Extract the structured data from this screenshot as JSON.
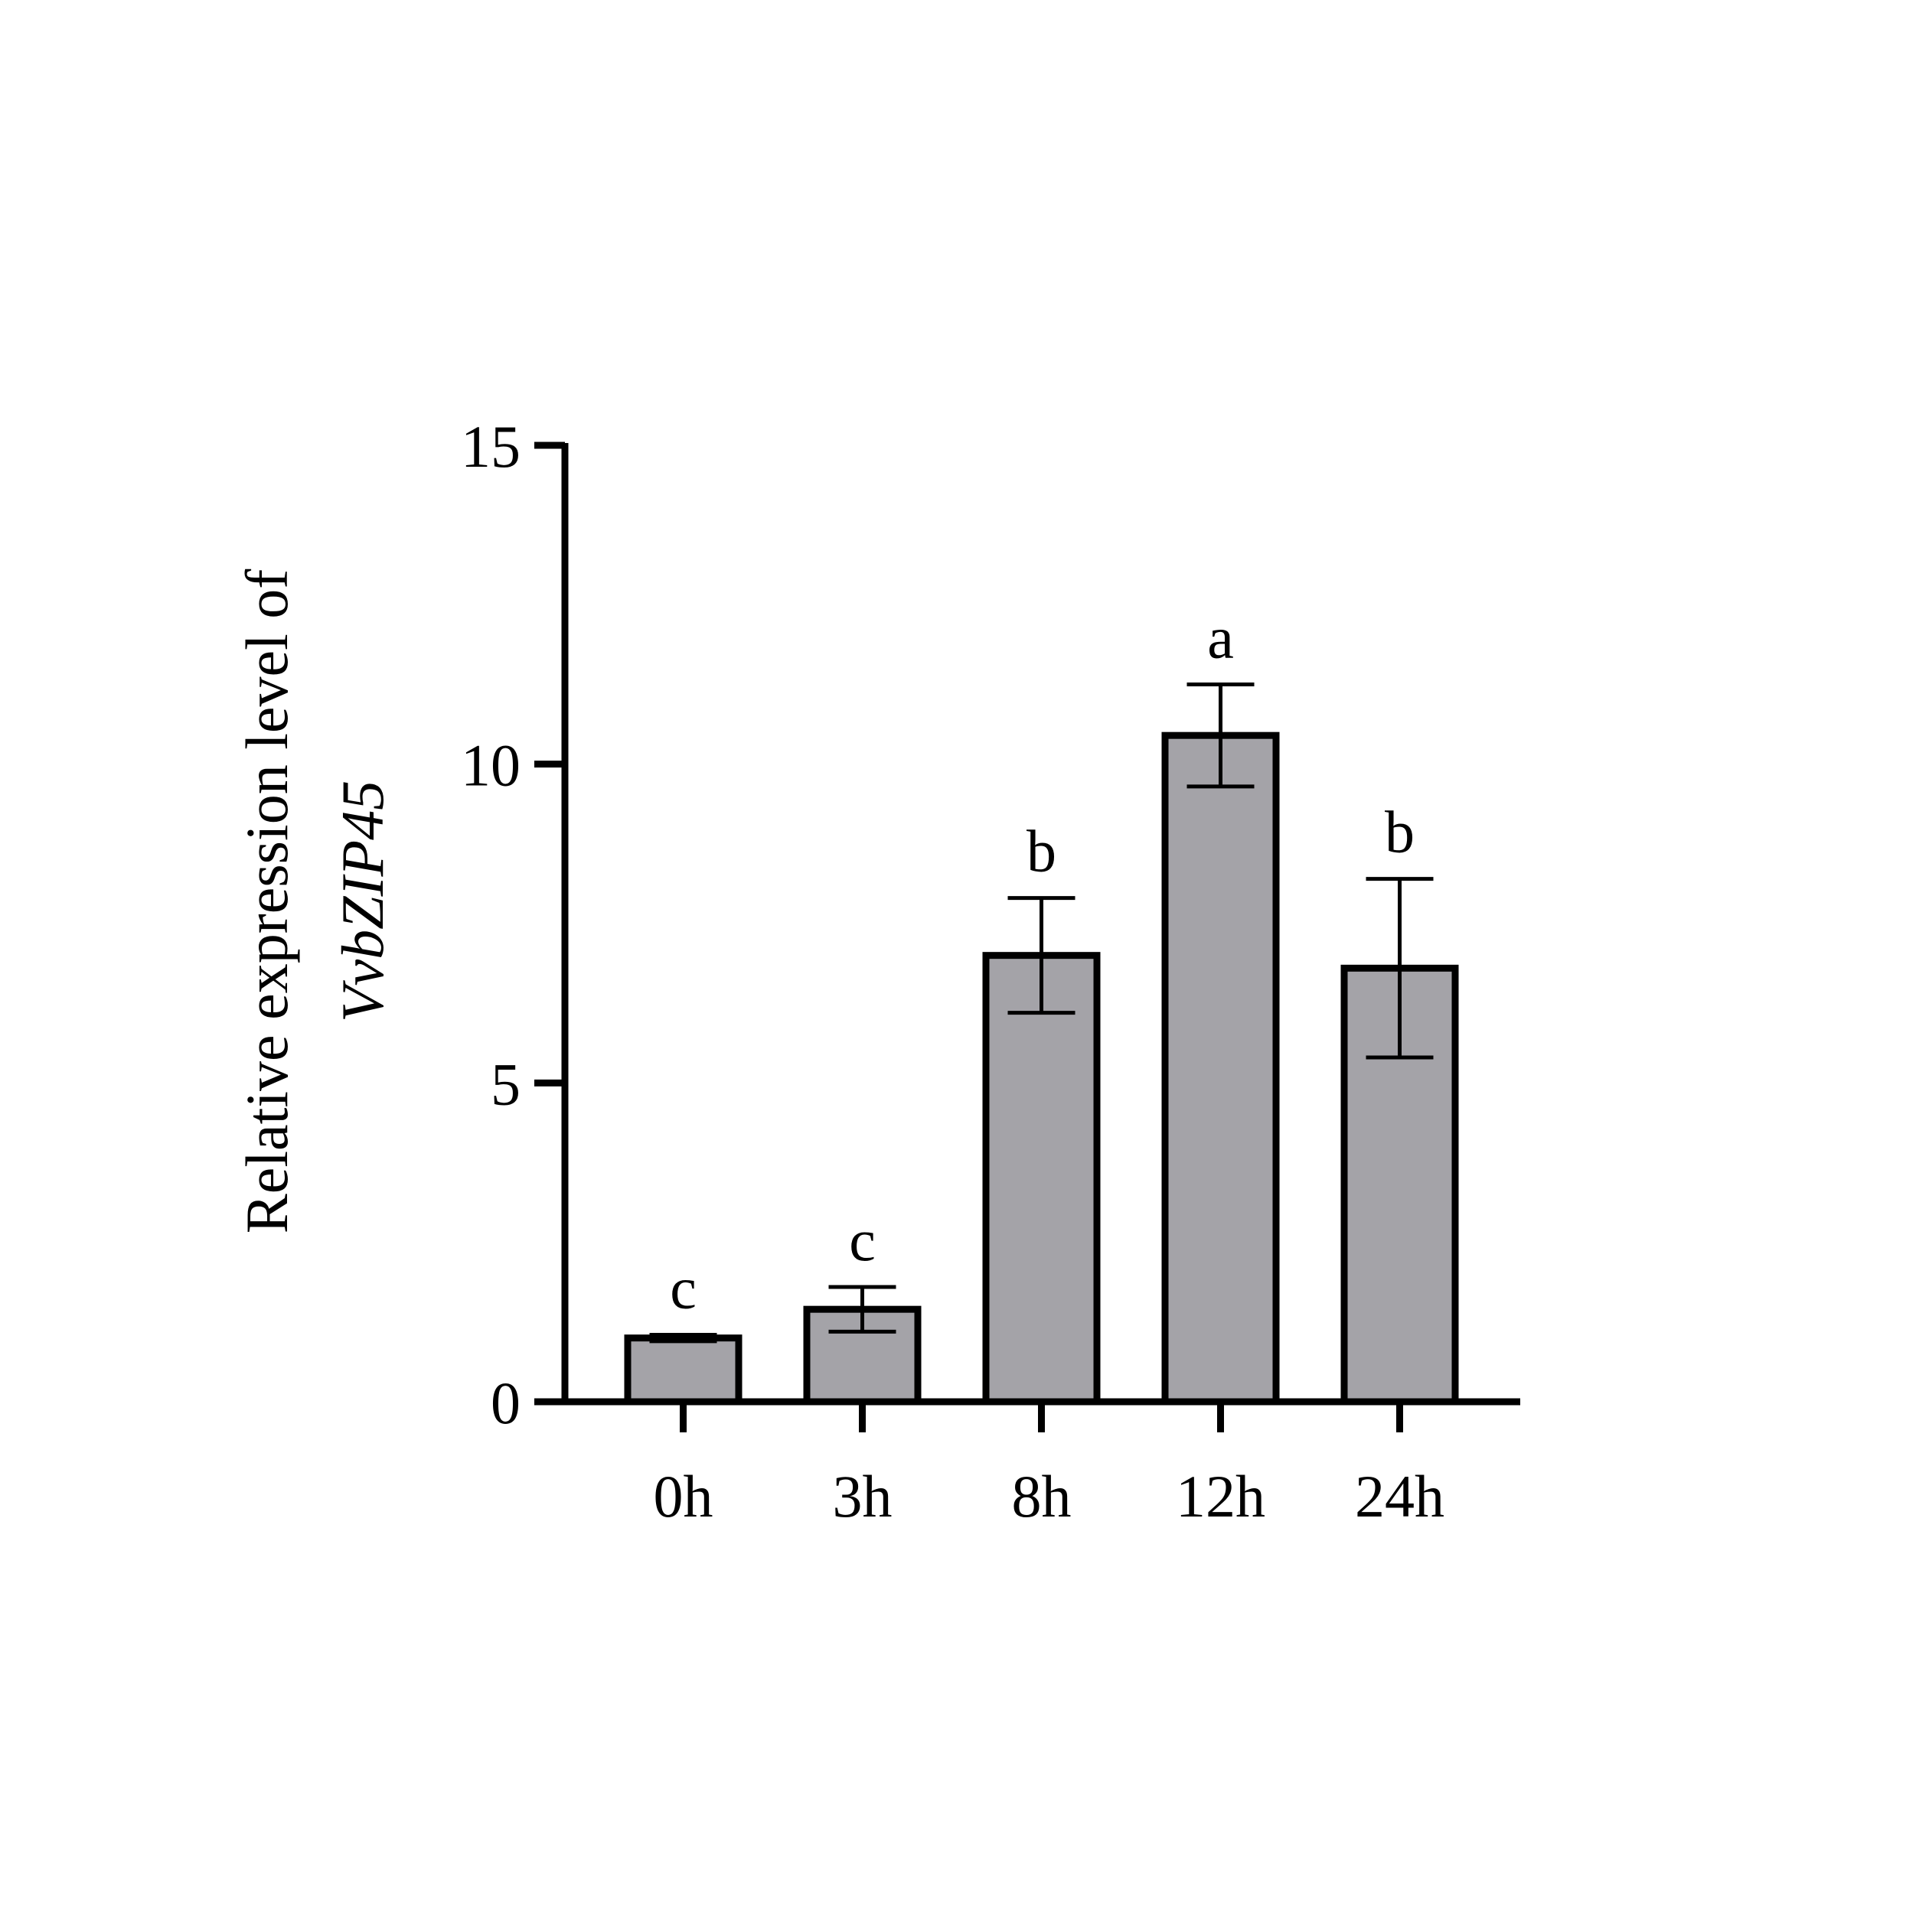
{
  "chart_data": {
    "type": "bar",
    "categories": [
      "0h",
      "3h",
      "8h",
      "12h",
      "24h"
    ],
    "values": [
      1.0,
      1.45,
      7.0,
      10.45,
      6.8
    ],
    "error": [
      0.05,
      0.35,
      0.9,
      0.8,
      1.4
    ],
    "significance": [
      "c",
      "c",
      "b",
      "a",
      "b"
    ],
    "ylabel_lines": [
      "Relative expression  level of",
      "VvbZIP45"
    ],
    "ylim": [
      0,
      15
    ],
    "yticks": [
      0,
      5,
      10,
      15
    ],
    "xlabel": "",
    "title": "",
    "grid": false,
    "legend": "none",
    "colors": {
      "bar_fill": "#a4a3a8",
      "bar_stroke": "#000000",
      "axis": "#000000"
    }
  }
}
